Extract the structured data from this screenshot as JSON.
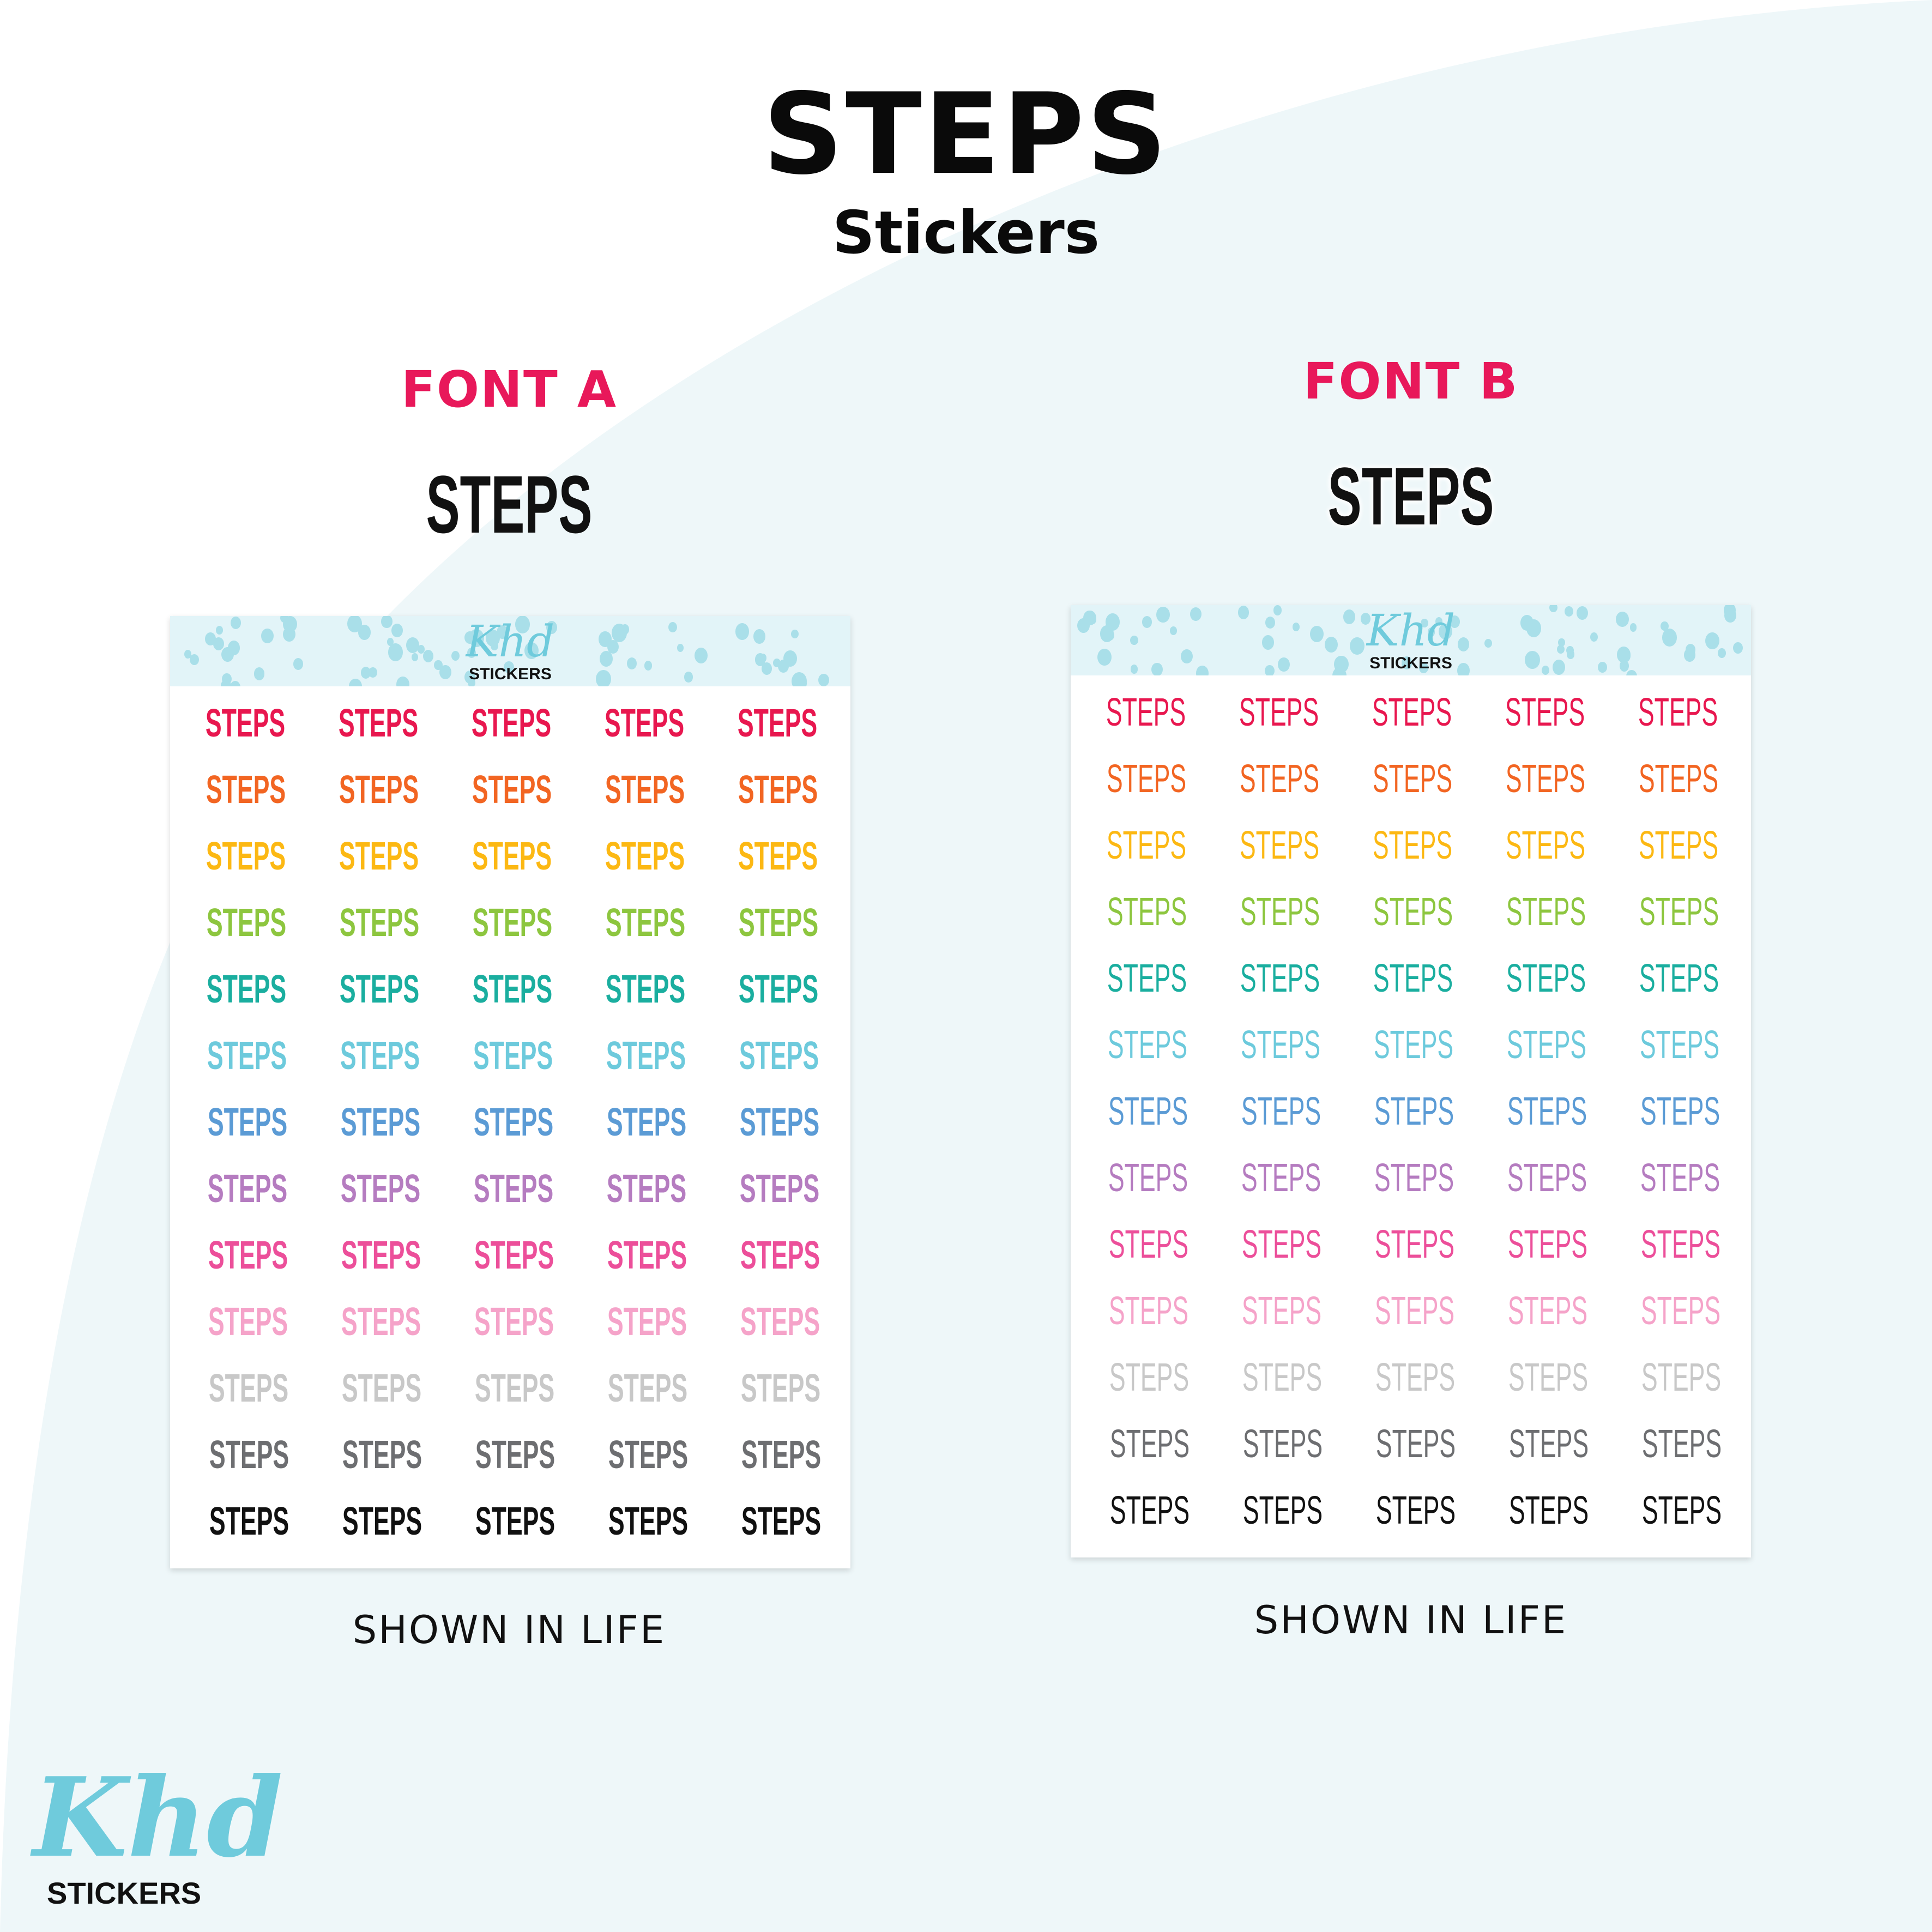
{
  "header": {
    "title": "STEPS",
    "subtitle": "Stickers"
  },
  "font_a": {
    "label": "FONT A",
    "sample": "STEPS",
    "caption": "SHOWN IN LIFE"
  },
  "font_b": {
    "label": "FONT B",
    "sample": "STEPS",
    "caption": "SHOWN IN LIFE"
  },
  "sheet": {
    "logo_script": "Khd",
    "logo_word": "STICKERS",
    "sticker_word": "STEPS",
    "columns": 5,
    "row_colors": [
      "#e8174f",
      "#f26522",
      "#fcb813",
      "#8dc63f",
      "#1aae9f",
      "#6dcadc",
      "#5b9bd5",
      "#b57cc0",
      "#ec4f9a",
      "#f5a3c9",
      "#c8c8c8",
      "#6d6e71",
      "#111111"
    ]
  },
  "brand": {
    "script": "Khd",
    "word": "STICKERS"
  },
  "colors": {
    "accent": "#e8185a",
    "background_tint": "#eef7f9",
    "brand_teal": "#6fcbdc"
  }
}
